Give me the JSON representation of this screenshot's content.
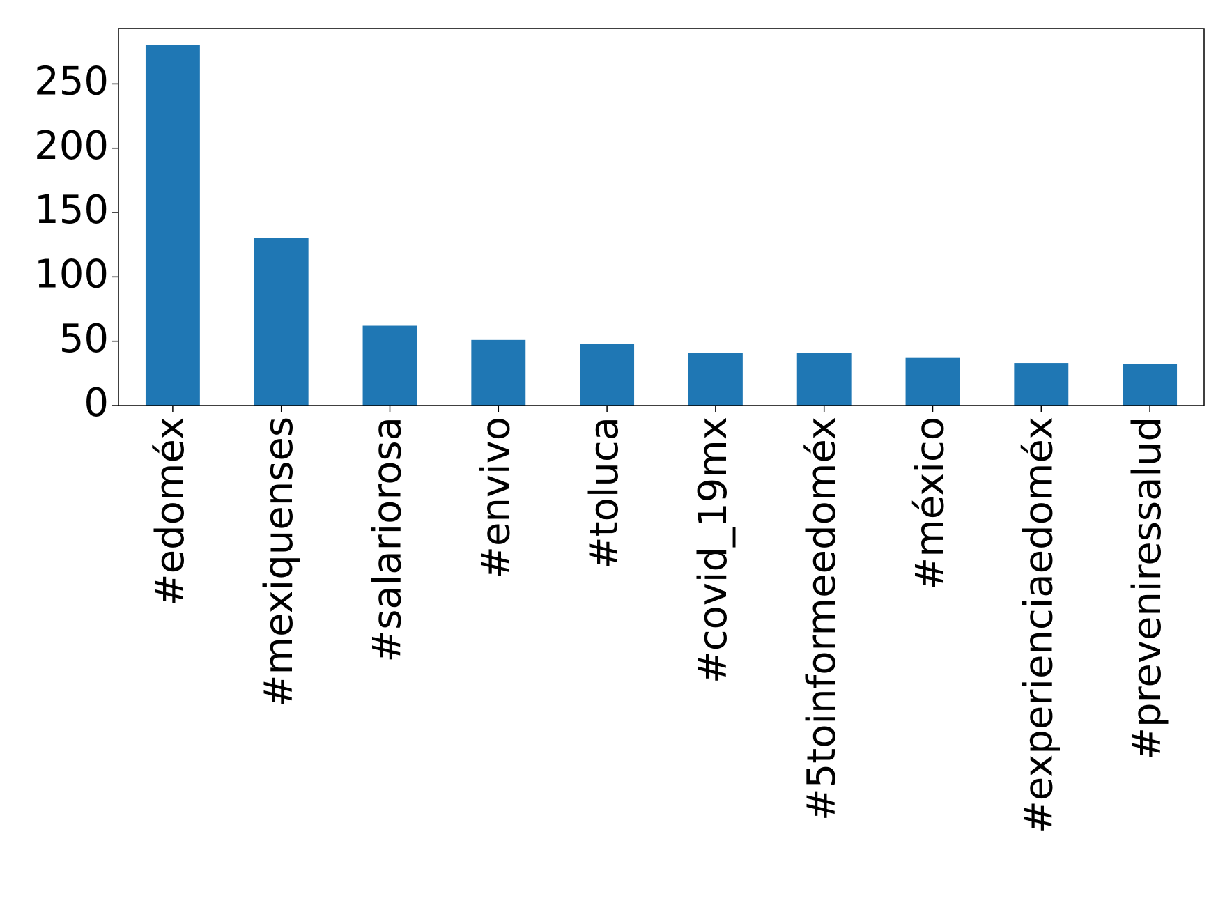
{
  "chart_data": {
    "type": "bar",
    "categories": [
      "#edoméx",
      "#mexiquenses",
      "#salariorosa",
      "#envivo",
      "#toluca",
      "#covid_19mx",
      "#5toinformeedoméx",
      "#méxico",
      "#experienciaedoméx",
      "#preveniressalud"
    ],
    "values": [
      280,
      130,
      62,
      51,
      48,
      41,
      41,
      37,
      33,
      32
    ],
    "color": "#1f77b4",
    "ylim": [
      0,
      293
    ],
    "yticks": [
      0,
      50,
      100,
      150,
      200,
      250
    ],
    "grid": false
  }
}
